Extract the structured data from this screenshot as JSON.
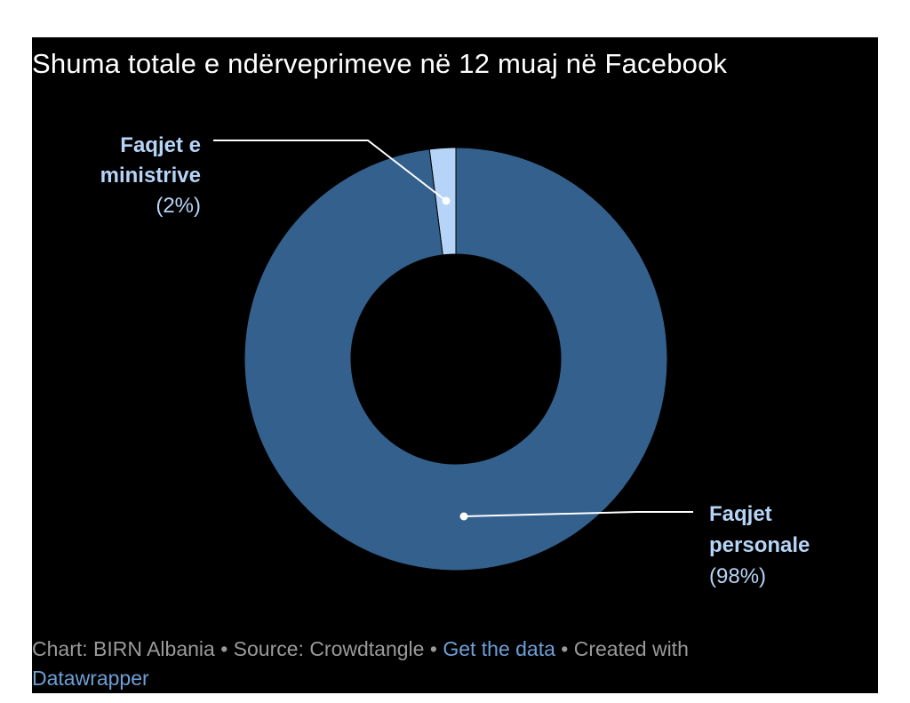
{
  "chart_data": {
    "type": "pie",
    "donut": true,
    "title": "Shuma totale e ndërveprimeve në 12 muaj në Facebook",
    "slices": [
      {
        "label_line1": "Faqjet e",
        "label_line2": "ministrive",
        "pct_label": "(2%)",
        "value": 2,
        "color": "#b5d4f7"
      },
      {
        "label_line1": "Faqjet",
        "label_line2": "personale",
        "pct_label": "(98%)",
        "value": 98,
        "color": "#33608c"
      }
    ]
  },
  "footer": {
    "chart_by": "Chart: BIRN Albania",
    "source": "Source: Crowdtangle",
    "get_data": "Get the data",
    "created_with": "Created with",
    "datawrapper": "Datawrapper",
    "separator": "•"
  },
  "colors": {
    "background": "#000000",
    "label_text": "#b5d4f7",
    "leader_line": "#ffffff"
  }
}
